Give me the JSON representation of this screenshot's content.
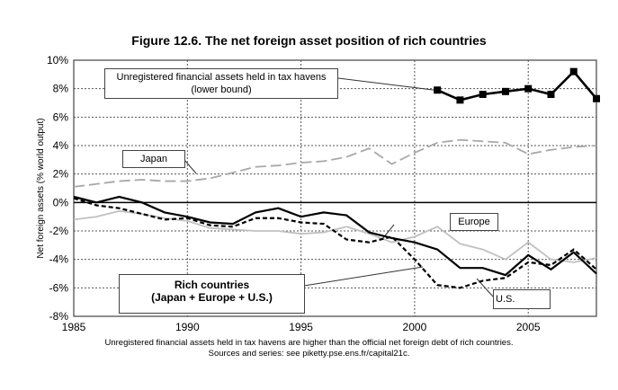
{
  "chart_data": {
    "type": "line",
    "title": "Figure 12.6. The net foreign asset position of rich countries",
    "ylabel": "Net foreign assets (% world output)",
    "xlabel": "",
    "xlim": [
      1985,
      2008
    ],
    "ylim": [
      -8,
      10
    ],
    "grid": true,
    "xticks": [
      "1985",
      "1990",
      "1995",
      "2000",
      "2005"
    ],
    "yticks": [
      "10%",
      "8%",
      "6%",
      "4%",
      "2%",
      "0%",
      "-2%",
      "-4%",
      "-6%",
      "-8%"
    ],
    "series": [
      {
        "name": "Rich countries (Japan + Europe + U.S.)",
        "style": "solid",
        "color": "#000000",
        "x": [
          1985,
          1986,
          1987,
          1988,
          1989,
          1990,
          1991,
          1992,
          1993,
          1994,
          1995,
          1996,
          1997,
          1998,
          1999,
          2000,
          2001,
          2002,
          2003,
          2004,
          2005,
          2006,
          2007,
          2008
        ],
        "values": [
          0.4,
          0.0,
          0.4,
          0.0,
          -0.7,
          -1.0,
          -1.4,
          -1.5,
          -0.7,
          -0.4,
          -1.0,
          -0.7,
          -0.9,
          -2.1,
          -2.5,
          -2.8,
          -3.3,
          -4.6,
          -4.6,
          -5.1,
          -3.7,
          -4.7,
          -3.5,
          -5.0
        ]
      },
      {
        "name": "U.S.",
        "style": "dashed",
        "color": "#000000",
        "x": [
          1985,
          1986,
          1987,
          1988,
          1989,
          1990,
          1991,
          1992,
          1993,
          1994,
          1995,
          1996,
          1997,
          1998,
          1999,
          2000,
          2001,
          2002,
          2003,
          2004,
          2005,
          2006,
          2007,
          2008
        ],
        "values": [
          0.3,
          -0.2,
          -0.4,
          -0.8,
          -1.2,
          -1.1,
          -1.6,
          -1.7,
          -1.1,
          -1.1,
          -1.4,
          -1.5,
          -2.6,
          -2.8,
          -2.4,
          -4.0,
          -5.8,
          -6.0,
          -5.5,
          -5.3,
          -4.2,
          -4.4,
          -3.3,
          -4.7
        ]
      },
      {
        "name": "Europe",
        "style": "solid",
        "color": "#c0c0c0",
        "x": [
          1985,
          1986,
          1987,
          1988,
          1989,
          1990,
          1991,
          1992,
          1993,
          1994,
          1995,
          1996,
          1997,
          1998,
          1999,
          2000,
          2001,
          2002,
          2003,
          2004,
          2005,
          2006,
          2007,
          2008
        ],
        "values": [
          -1.2,
          -1.0,
          -0.6,
          -0.8,
          -1.1,
          -1.3,
          -1.8,
          -1.9,
          -2.0,
          -2.0,
          -2.2,
          -2.1,
          -1.7,
          -2.2,
          -2.8,
          -2.4,
          -1.7,
          -2.9,
          -3.3,
          -4.0,
          -2.8,
          -4.0,
          -4.2,
          -3.9
        ]
      },
      {
        "name": "Japan",
        "style": "longdash",
        "color": "#a8a8a8",
        "x": [
          1985,
          1986,
          1987,
          1988,
          1989,
          1990,
          1991,
          1992,
          1993,
          1994,
          1995,
          1996,
          1997,
          1998,
          1999,
          2000,
          2001,
          2002,
          2003,
          2004,
          2005,
          2006,
          2007,
          2008
        ],
        "values": [
          1.1,
          1.3,
          1.5,
          1.6,
          1.5,
          1.5,
          1.7,
          2.1,
          2.5,
          2.6,
          2.8,
          2.9,
          3.2,
          3.8,
          2.7,
          3.5,
          4.2,
          4.4,
          4.3,
          4.2,
          3.4,
          3.7,
          3.9,
          4.0
        ]
      },
      {
        "name": "Unregistered financial assets held in tax havens (lower bound)",
        "style": "solid-square",
        "color": "#000000",
        "x": [
          2001,
          2002,
          2003,
          2004,
          2005,
          2006,
          2007,
          2008
        ],
        "values": [
          7.9,
          7.2,
          7.6,
          7.8,
          8.0,
          7.6,
          9.2,
          7.3
        ]
      }
    ],
    "annotations": {
      "havens": [
        "Unregistered financial assets held in tax havens",
        "(lower bound)"
      ],
      "japan": "Japan",
      "europe": "Europe",
      "us": "U.S.",
      "rich": [
        "Rich countries",
        "(Japan + Europe + U.S.)"
      ]
    },
    "notes": [
      "Unregistered financial assets held in tax havens are higher than the official net foreign debt of rich countries.",
      "Sources and series: see piketty.pse.ens.fr/capital21c."
    ]
  }
}
